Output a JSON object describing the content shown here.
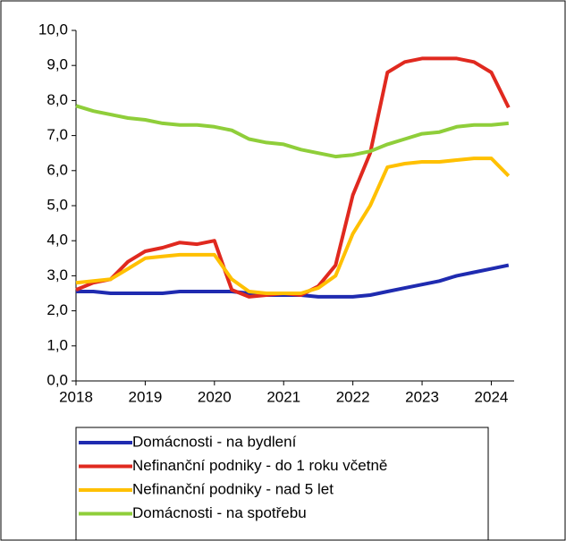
{
  "chart_data": {
    "type": "line",
    "x": [
      2018,
      2018.25,
      2018.5,
      2018.75,
      2019,
      2019.25,
      2019.5,
      2019.75,
      2020,
      2020.25,
      2020.5,
      2020.75,
      2021,
      2021.25,
      2021.5,
      2021.75,
      2022,
      2022.25,
      2022.5,
      2022.75,
      2023,
      2023.25,
      2023.5,
      2023.75,
      2024,
      2024.25
    ],
    "series": [
      {
        "name": "Domácnosti - na bydlení",
        "color": "#1f2bb0",
        "values": [
          2.55,
          2.55,
          2.5,
          2.5,
          2.5,
          2.5,
          2.55,
          2.55,
          2.55,
          2.55,
          2.5,
          2.45,
          2.45,
          2.45,
          2.4,
          2.4,
          2.4,
          2.45,
          2.55,
          2.65,
          2.75,
          2.85,
          3.0,
          3.1,
          3.2,
          3.3
        ]
      },
      {
        "name": "Nefinanční podniky - do 1 roku včetně",
        "color": "#e0291f",
        "values": [
          2.6,
          2.8,
          2.9,
          3.4,
          3.7,
          3.8,
          3.95,
          3.9,
          4.0,
          2.6,
          2.4,
          2.45,
          2.5,
          2.45,
          2.7,
          3.3,
          5.3,
          6.5,
          8.8,
          9.1,
          9.2,
          9.2,
          9.2,
          9.1,
          8.8,
          7.8
        ]
      },
      {
        "name": "Nefinanční podniky - nad 5 let",
        "color": "#ffc000",
        "values": [
          2.8,
          2.85,
          2.9,
          3.2,
          3.5,
          3.55,
          3.6,
          3.6,
          3.6,
          2.9,
          2.55,
          2.5,
          2.5,
          2.5,
          2.65,
          3.0,
          4.2,
          5.0,
          6.1,
          6.2,
          6.25,
          6.25,
          6.3,
          6.35,
          6.35,
          5.85
        ]
      },
      {
        "name": "Domácnosti - na spotřebu",
        "color": "#8fce3a",
        "values": [
          7.85,
          7.7,
          7.6,
          7.5,
          7.45,
          7.35,
          7.3,
          7.3,
          7.25,
          7.15,
          6.9,
          6.8,
          6.75,
          6.6,
          6.5,
          6.4,
          6.45,
          6.55,
          6.75,
          6.9,
          7.05,
          7.1,
          7.25,
          7.3,
          7.3,
          7.35
        ]
      }
    ],
    "xlim": [
      2018,
      2024.33
    ],
    "xticks": [
      2018,
      2019,
      2020,
      2021,
      2022,
      2023,
      2024
    ],
    "ylim": [
      0,
      10
    ],
    "yticks": [
      {
        "value": 0,
        "label": "0,0"
      },
      {
        "value": 1,
        "label": "1,0"
      },
      {
        "value": 2,
        "label": "2,0"
      },
      {
        "value": 3,
        "label": "3,0"
      },
      {
        "value": 4,
        "label": "4,0"
      },
      {
        "value": 5,
        "label": "5,0"
      },
      {
        "value": 6,
        "label": "6,0"
      },
      {
        "value": 7,
        "label": "7,0"
      },
      {
        "value": 8,
        "label": "8,0"
      },
      {
        "value": 9,
        "label": "9,0"
      },
      {
        "value": 10,
        "label": "10,0"
      }
    ]
  }
}
